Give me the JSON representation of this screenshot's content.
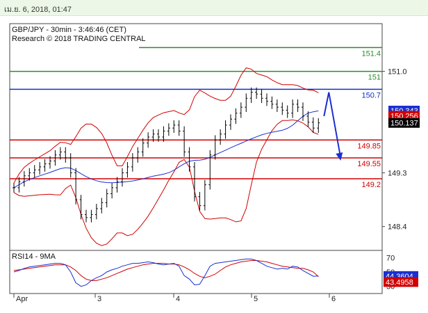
{
  "header": {
    "timestamp": "เม.ย. 6, 2018, 01:47"
  },
  "chart_data": {
    "type": "candlestick",
    "title": "GBP/JPY - 30min - 3:46:46 (CET)",
    "subtitle": "Research © 2018 TRADING CENTRAL",
    "ylim": [
      148.0,
      151.8
    ],
    "x_ticks": [
      "Apr",
      "3",
      "4",
      "5",
      "6"
    ],
    "y_ticks": [
      "151.0",
      "149.3",
      "148.4"
    ],
    "levels": [
      {
        "label": "151.4",
        "value": 151.4,
        "color": "#2e8b2e"
      },
      {
        "label": "151",
        "value": 151.0,
        "color": "#2e8b2e"
      },
      {
        "label": "150.7",
        "value": 150.7,
        "color": "#1030c8"
      },
      {
        "label": "149.85",
        "value": 149.85,
        "color": "#d00000"
      },
      {
        "label": "149.55",
        "value": 149.55,
        "color": "#d00000"
      },
      {
        "label": "149.2",
        "value": 149.2,
        "color": "#d00000"
      }
    ],
    "price_labels": [
      {
        "text": "150.343",
        "value": 150.343,
        "bg": "#1a2fd0",
        "fg": "#ffffff"
      },
      {
        "text": "150.256",
        "value": 150.256,
        "bg": "#d00000",
        "fg": "#ffffff"
      },
      {
        "text": "150.137",
        "value": 150.137,
        "bg": "#000000",
        "fg": "#ffffff"
      }
    ],
    "closes": [
      149.05,
      149.15,
      149.25,
      149.3,
      149.35,
      149.4,
      149.45,
      149.5,
      149.6,
      149.65,
      149.55,
      149.3,
      148.85,
      148.6,
      148.55,
      148.6,
      148.7,
      148.8,
      148.95,
      149.05,
      149.15,
      149.3,
      149.4,
      149.55,
      149.65,
      149.8,
      149.9,
      149.95,
      149.9,
      150.0,
      150.05,
      150.1,
      150.0,
      149.65,
      149.4,
      148.9,
      148.75,
      149.1,
      149.6,
      149.85,
      149.95,
      150.1,
      150.2,
      150.3,
      150.4,
      150.55,
      150.65,
      150.62,
      150.55,
      150.5,
      150.45,
      150.4,
      150.35,
      150.3,
      150.45,
      150.4,
      150.25,
      150.15,
      150.05,
      150.137
    ],
    "forecast": [
      150.25,
      150.65,
      149.55
    ],
    "rsi": {
      "title": "RSI14 - 9MA",
      "ylim": [
        20,
        80
      ],
      "y_ticks": [
        "70",
        "50",
        "30"
      ],
      "rsi_label": "44.3604",
      "ma_label": "43.4958",
      "rsi": [
        50,
        52,
        55,
        57,
        58,
        59,
        60,
        61,
        62,
        62,
        60,
        50,
        35,
        30,
        32,
        38,
        42,
        45,
        50,
        53,
        55,
        58,
        60,
        62,
        62,
        63,
        64,
        63,
        61,
        60,
        61,
        62,
        58,
        45,
        40,
        32,
        33,
        45,
        58,
        62,
        63,
        64,
        65,
        66,
        67,
        68,
        68,
        66,
        62,
        58,
        56,
        54,
        55,
        54,
        58,
        57,
        52,
        48,
        44,
        44.36
      ],
      "ma": [
        52,
        53,
        54,
        55,
        56,
        57,
        58,
        59,
        60,
        60,
        60,
        57,
        52,
        45,
        40,
        38,
        38,
        40,
        42,
        45,
        48,
        51,
        54,
        56,
        58,
        60,
        61,
        62,
        62,
        62,
        61,
        61,
        60,
        57,
        53,
        48,
        44,
        42,
        44,
        47,
        52,
        57,
        60,
        62,
        64,
        65,
        66,
        66,
        65,
        64,
        62,
        60,
        58,
        57,
        56,
        55,
        55,
        53,
        50,
        43.5
      ]
    },
    "colors": {
      "candles": "#000000",
      "ma": "#1a2fd0",
      "bands": "#d00000",
      "rsi": "#1a2fd0",
      "rsi_ma": "#d00000",
      "forecast": "#1a2fd0"
    }
  }
}
